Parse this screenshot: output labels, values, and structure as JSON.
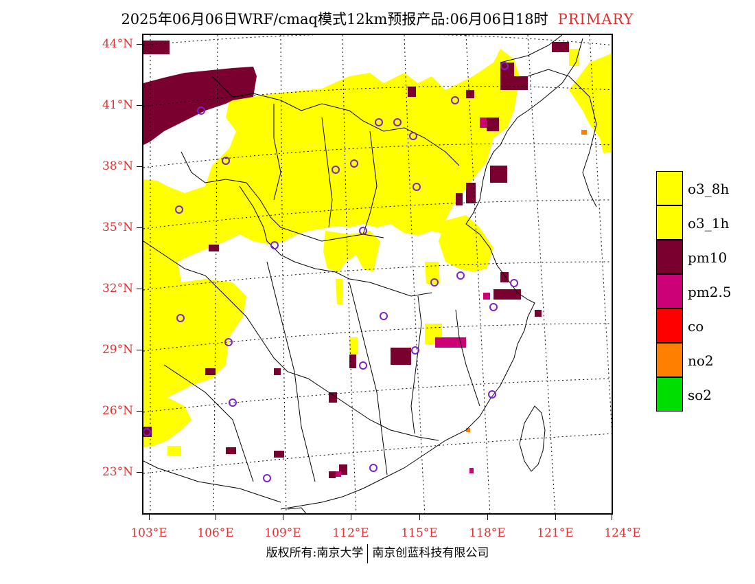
{
  "title": {
    "main": "2025年06月06日WRF/cmaq模式12km预报产品:06月06日18时",
    "tag": "PRIMARY",
    "tag_color": "#e03030"
  },
  "axes": {
    "lat_labels": [
      "44°N",
      "41°N",
      "38°N",
      "35°N",
      "32°N",
      "29°N",
      "26°N",
      "23°N"
    ],
    "lon_labels": [
      "103°E",
      "106°E",
      "109°E",
      "112°E",
      "115°E",
      "118°E",
      "121°E",
      "124°E"
    ],
    "label_color": "#e03030"
  },
  "legend": [
    {
      "label": "o3_8h",
      "color": "#ffff00"
    },
    {
      "label": "o3_1h",
      "color": "#ffff00"
    },
    {
      "label": "pm10",
      "color": "#7a0030"
    },
    {
      "label": "pm2.5",
      "color": "#cc0077"
    },
    {
      "label": "co",
      "color": "#ff0000"
    },
    {
      "label": "no2",
      "color": "#ff7f00"
    },
    {
      "label": "so2",
      "color": "#00dd00"
    }
  ],
  "footer": {
    "left": "版权所有:南京大学",
    "right": "南京创蓝科技有限公司"
  },
  "colors": {
    "o3": "#ffff00",
    "pm10": "#7a0030",
    "pm25": "#cc0077",
    "no2": "#ff7f00",
    "station_ring": "#7a22cc"
  }
}
